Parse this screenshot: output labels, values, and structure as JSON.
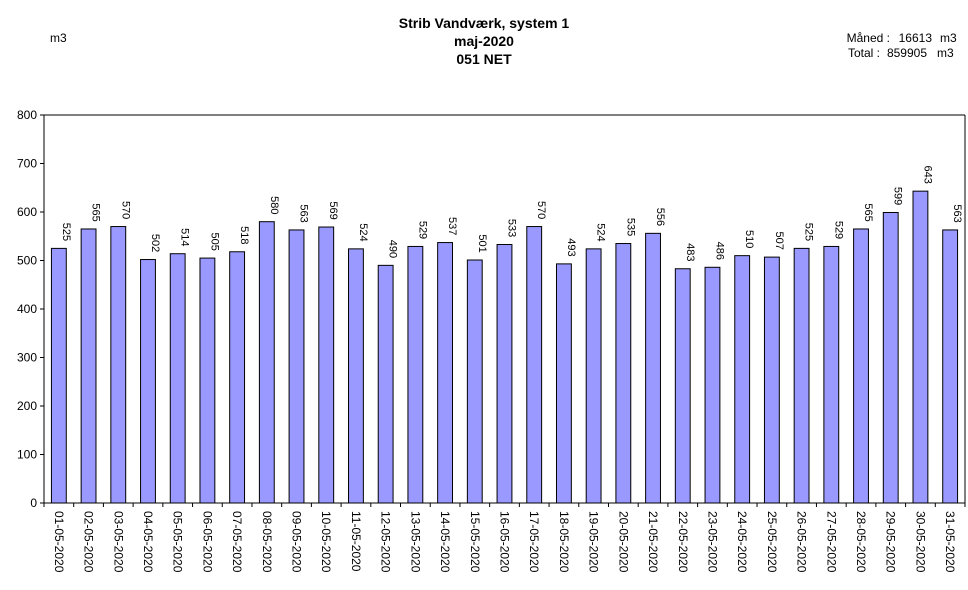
{
  "chart_data": {
    "type": "bar",
    "title": "Strib Vandværk, system 1",
    "subtitle": "maj-2020",
    "subtitle2": "051 NET",
    "ylabel": "m3",
    "xlabel": "",
    "ylim": [
      0,
      800
    ],
    "ytick_step": 100,
    "grid": false,
    "bar_color": "#9999ff",
    "summary": {
      "month_label": "Måned :",
      "month_value": "16613",
      "total_label": "Total :",
      "total_value": "859905",
      "unit": "m3"
    },
    "categories": [
      "01-05-2020",
      "02-05-2020",
      "03-05-2020",
      "04-05-2020",
      "05-05-2020",
      "06-05-2020",
      "07-05-2020",
      "08-05-2020",
      "09-05-2020",
      "10-05-2020",
      "11-05-2020",
      "12-05-2020",
      "13-05-2020",
      "14-05-2020",
      "15-05-2020",
      "16-05-2020",
      "17-05-2020",
      "18-05-2020",
      "19-05-2020",
      "20-05-2020",
      "21-05-2020",
      "22-05-2020",
      "23-05-2020",
      "24-05-2020",
      "25-05-2020",
      "26-05-2020",
      "27-05-2020",
      "28-05-2020",
      "29-05-2020",
      "30-05-2020",
      "31-05-2020"
    ],
    "values": [
      525,
      565,
      570,
      502,
      514,
      505,
      518,
      580,
      563,
      569,
      524,
      490,
      529,
      537,
      501,
      533,
      570,
      493,
      524,
      535,
      556,
      483,
      486,
      510,
      507,
      525,
      529,
      565,
      599,
      643,
      563
    ]
  }
}
